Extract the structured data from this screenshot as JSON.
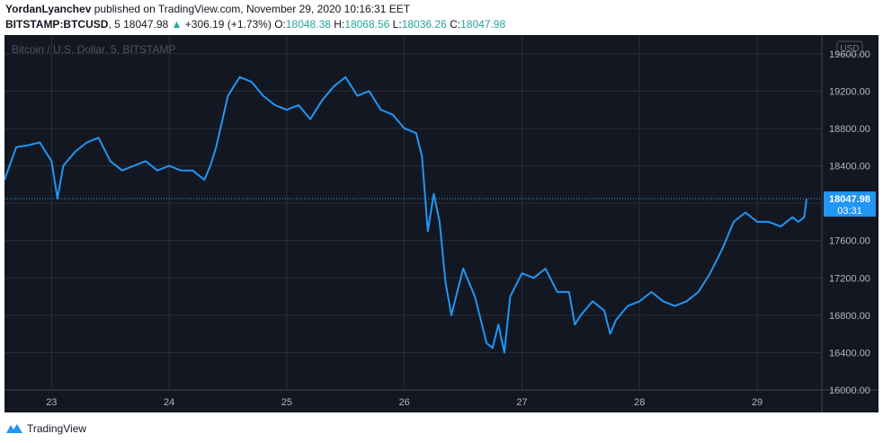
{
  "header": {
    "author": "YordanLyanchev",
    "published_text": "published on TradingView.com, November 29, 2020 10:16:31 EET",
    "symbol": "BITSTAMP:BTCUSD",
    "interval": ", 5",
    "last_price": "18047.98",
    "change_arrow": "▲",
    "change": "+306.19 (+1.73%)",
    "o_label": "O:",
    "o_value": "18048.38",
    "h_label": "H:",
    "h_value": "18068.56",
    "l_label": "L:",
    "l_value": "18036.26",
    "c_label": "C:",
    "c_value": "18047.98"
  },
  "footer": {
    "brand": "TradingView"
  },
  "colors": {
    "line": "#2196f3",
    "background": "#131722",
    "grid": "#2a2e39",
    "axis_text": "#b2b5be",
    "up": "#26a69a",
    "price_label": "#2196f3"
  },
  "chart_data": {
    "type": "line",
    "watermark": "Bitcoin / U.S. Dollar, 5, BITSTAMP",
    "currency_label": "USD",
    "last_price_label": "18047.98",
    "countdown_label": "03:31",
    "ylim": [
      16000,
      19800
    ],
    "xlim": [
      22.6,
      29.55
    ],
    "y_ticks": [
      "19600.00",
      "19200.00",
      "18800.00",
      "18400.00",
      "18000.00",
      "17600.00",
      "17200.00",
      "16800.00",
      "16400.00",
      "16000.00"
    ],
    "x_ticks": [
      "23",
      "24",
      "25",
      "26",
      "27",
      "28",
      "29"
    ],
    "grid": true,
    "series": [
      {
        "x": [
          22.6,
          22.7,
          22.8,
          22.9,
          23.0,
          23.05,
          23.1,
          23.2,
          23.3,
          23.4,
          23.5,
          23.6,
          23.7,
          23.8,
          23.9,
          24.0,
          24.1,
          24.2,
          24.3,
          24.35,
          24.4,
          24.5,
          24.55,
          24.6,
          24.7,
          24.8,
          24.9,
          25.0,
          25.1,
          25.2,
          25.3,
          25.4,
          25.5,
          25.6,
          25.7,
          25.8,
          25.9,
          26.0,
          26.1,
          26.15,
          26.2,
          26.25,
          26.3,
          26.35,
          26.4,
          26.45,
          26.5,
          26.6,
          26.7,
          26.75,
          26.8,
          26.85,
          26.9,
          27.0,
          27.1,
          27.2,
          27.3,
          27.4,
          27.45,
          27.5,
          27.6,
          27.7,
          27.75,
          27.8,
          27.9,
          28.0,
          28.1,
          28.2,
          28.3,
          28.4,
          28.5,
          28.6,
          28.7,
          28.75,
          28.8,
          28.9,
          29.0,
          29.1,
          29.2,
          29.3,
          29.35,
          29.4,
          29.42
        ],
        "y": [
          18250,
          18600,
          18620,
          18650,
          18450,
          18050,
          18400,
          18550,
          18650,
          18700,
          18450,
          18350,
          18400,
          18450,
          18350,
          18400,
          18350,
          18350,
          18250,
          18400,
          18600,
          19150,
          19250,
          19350,
          19300,
          19150,
          19050,
          19000,
          19050,
          18900,
          19100,
          19250,
          19350,
          19150,
          19200,
          19000,
          18950,
          18800,
          18750,
          18500,
          17700,
          18100,
          17800,
          17150,
          16800,
          17050,
          17300,
          17000,
          16500,
          16450,
          16700,
          16400,
          17000,
          17250,
          17200,
          17300,
          17050,
          17050,
          16700,
          16800,
          16950,
          16850,
          16600,
          16750,
          16900,
          16950,
          17050,
          16950,
          16900,
          16950,
          17050,
          17250,
          17500,
          17650,
          17800,
          17900,
          17800,
          17800,
          17750,
          17850,
          17800,
          17850,
          18047.98
        ]
      }
    ]
  }
}
